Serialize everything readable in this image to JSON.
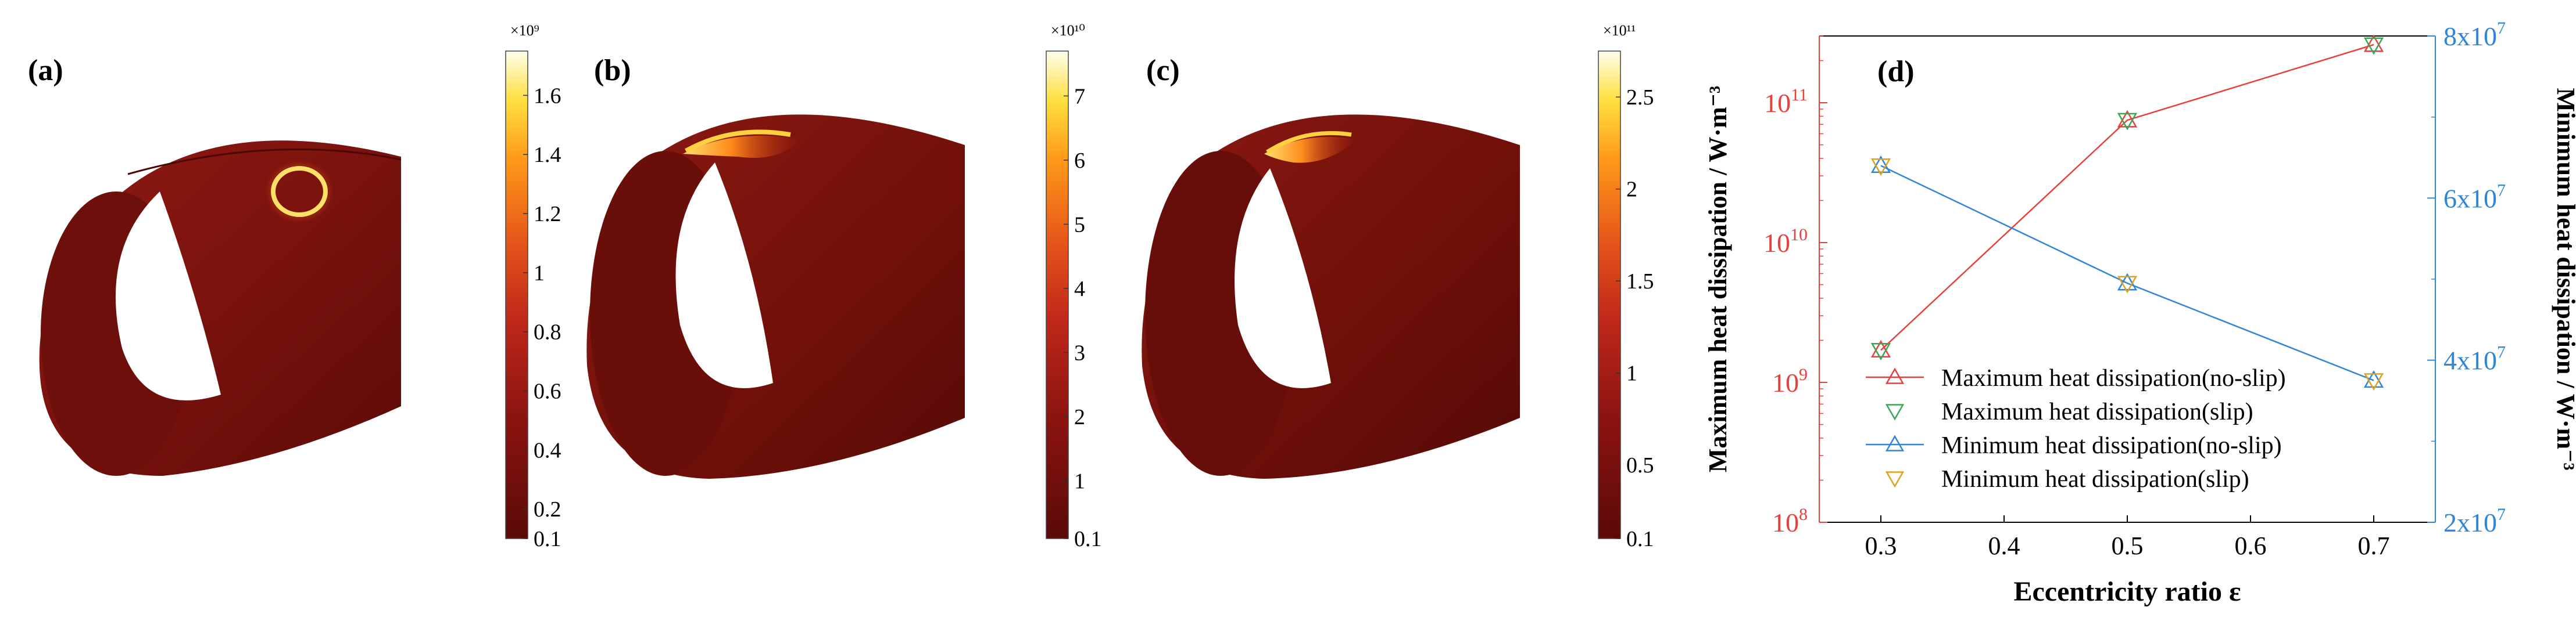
{
  "panels": [
    {
      "label": "(a)",
      "colorbar": {
        "exponent": "×10⁹",
        "ticks": [
          "0.1",
          "0.2",
          "0.4",
          "0.6",
          "0.8",
          "1",
          "1.2",
          "1.4",
          "1.6"
        ],
        "values": [
          0.1,
          0.2,
          0.4,
          0.6,
          0.8,
          1.0,
          1.2,
          1.4,
          1.6
        ],
        "vmin": 0.1,
        "vmax": 1.75
      }
    },
    {
      "label": "(b)",
      "colorbar": {
        "exponent": "×10¹⁰",
        "ticks": [
          "0.1",
          "1",
          "2",
          "3",
          "4",
          "5",
          "6",
          "7"
        ],
        "values": [
          0.1,
          1,
          2,
          3,
          4,
          5,
          6,
          7
        ],
        "vmin": 0.1,
        "vmax": 7.7
      }
    },
    {
      "label": "(c)",
      "colorbar": {
        "exponent": "×10¹¹",
        "ticks": [
          "0.1",
          "0.5",
          "1",
          "1.5",
          "2",
          "2.5"
        ],
        "values": [
          0.1,
          0.5,
          1,
          1.5,
          2,
          2.5
        ],
        "vmin": 0.1,
        "vmax": 2.75
      }
    }
  ],
  "chart_data": {
    "type": "line",
    "panel_label": "(d)",
    "x": [
      0.3,
      0.5,
      0.7
    ],
    "xlim": [
      0.25,
      0.75
    ],
    "xticks": [
      "0.3",
      "0.4",
      "0.5",
      "0.6",
      "0.7"
    ],
    "xlabel": "Eccentricity ratio ε",
    "ylabel_left": "Maximum heat dissipation / W·m⁻³",
    "ylabel_right": "Minimum heat dissipation / W·m⁻³",
    "y_left_scale": "log",
    "y_left_lim": [
      100000000.0,
      300000000000.0
    ],
    "y_left_ticks": [
      {
        "base": "10",
        "exp": "8"
      },
      {
        "base": "10",
        "exp": "9"
      },
      {
        "base": "10",
        "exp": "10"
      },
      {
        "base": "10",
        "exp": "11"
      }
    ],
    "y_right_lim": [
      20000000.0,
      80000000.0
    ],
    "y_right_ticks": [
      {
        "base": "2x10",
        "exp": "7"
      },
      {
        "base": "4x10",
        "exp": "7"
      },
      {
        "base": "6x10",
        "exp": "7"
      },
      {
        "base": "8x10",
        "exp": "7"
      }
    ],
    "series": [
      {
        "name": "Maximum heat dissipation(no-slip)",
        "axis": "left",
        "values": [
          1700000000.0,
          75000000000.0,
          260000000000.0
        ],
        "color": "#e8413c",
        "marker": "triangle-up",
        "line": true
      },
      {
        "name": "Maximum heat dissipation(slip)",
        "axis": "left",
        "values": [
          1700000000.0,
          75000000000.0,
          260000000000.0
        ],
        "color": "#3aa655",
        "marker": "triangle-down",
        "line": false
      },
      {
        "name": "Minimum heat dissipation(no-slip)",
        "axis": "right",
        "values": [
          64000000.0,
          49500000.0,
          37500000.0
        ],
        "color": "#2f86d9",
        "marker": "triangle-up",
        "line": true
      },
      {
        "name": "Minimum heat dissipation(slip)",
        "axis": "right",
        "values": [
          64000000.0,
          49500000.0,
          37500000.0
        ],
        "color": "#e0a21b",
        "marker": "triangle-down",
        "line": false
      }
    ],
    "colors": {
      "left_axis": "#e8413c",
      "right_axis": "#2f86d9"
    }
  }
}
